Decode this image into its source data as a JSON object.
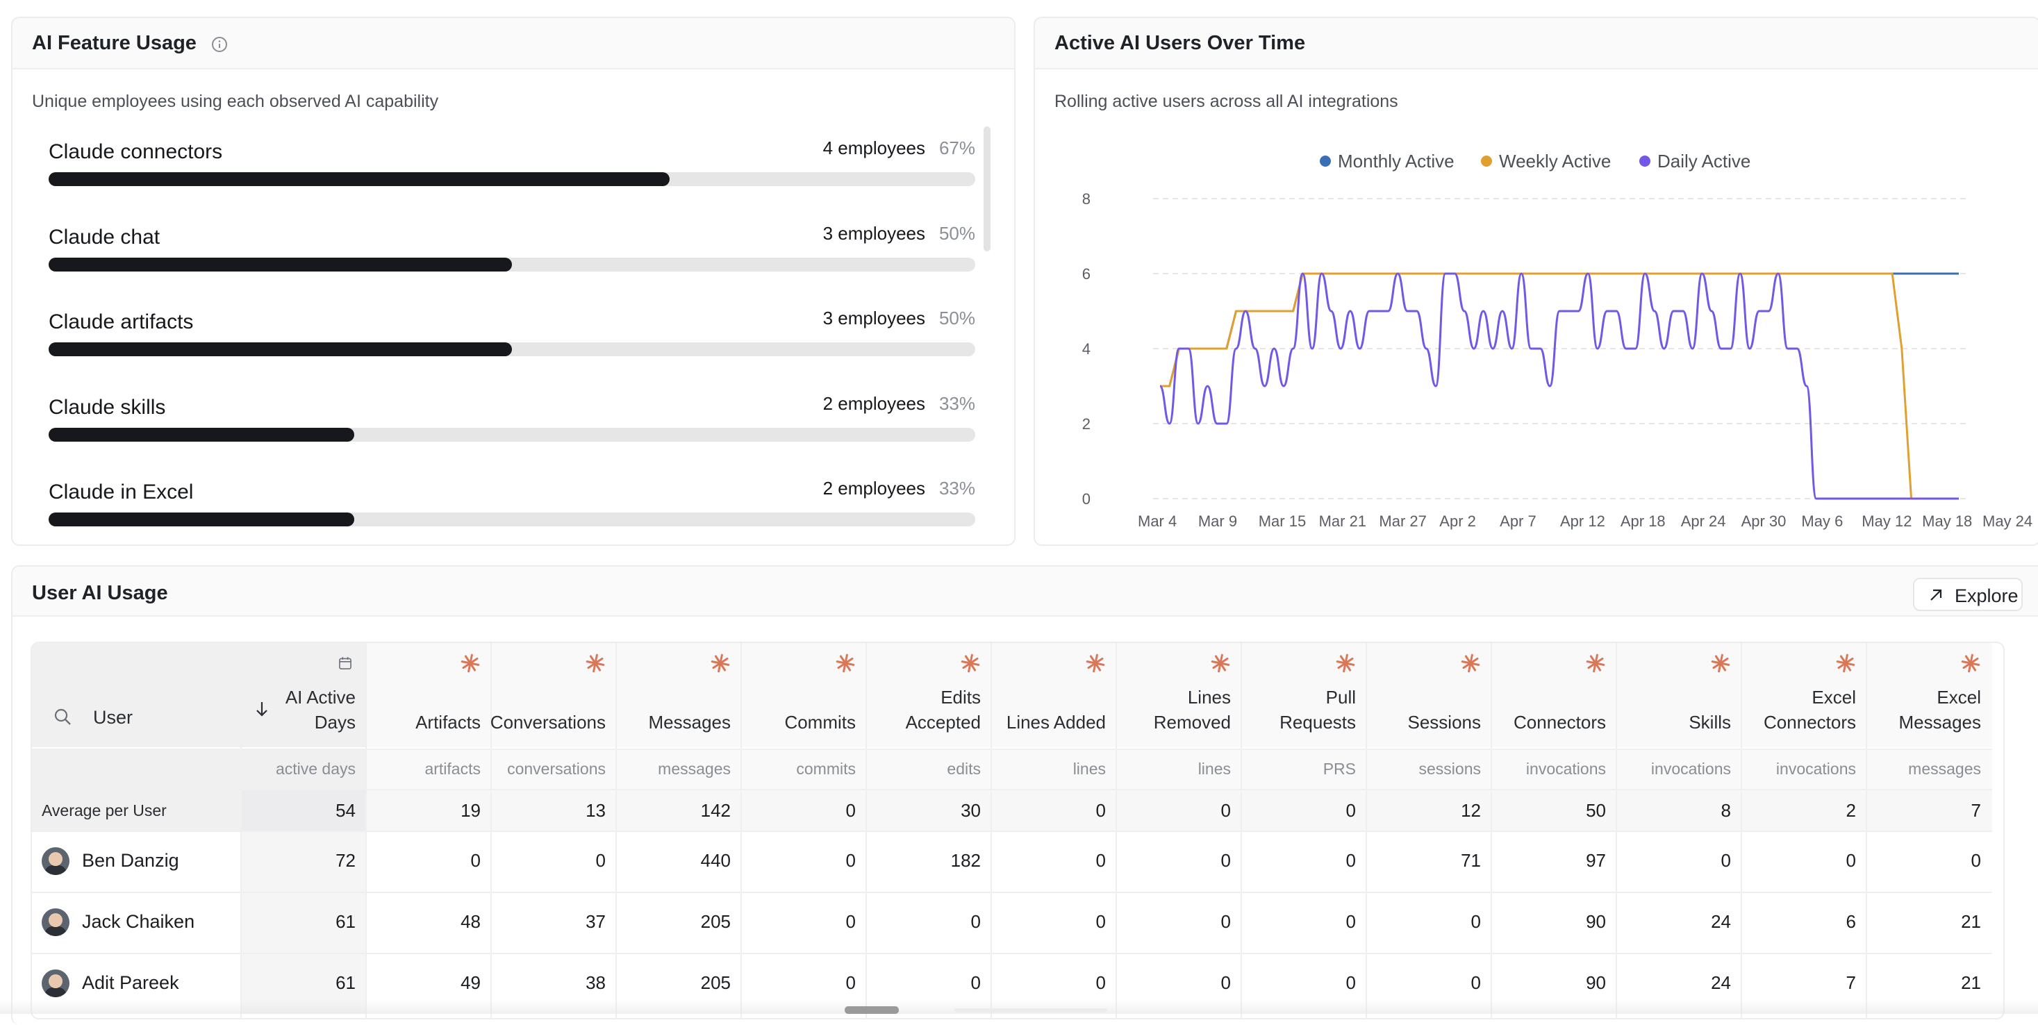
{
  "feature_card": {
    "title": "AI Feature Usage",
    "subtitle": "Unique employees using each observed AI capability",
    "items": [
      {
        "name": "Claude connectors",
        "count": "4 employees",
        "pct": "67%",
        "fraction": 0.67
      },
      {
        "name": "Claude chat",
        "count": "3 employees",
        "pct": "50%",
        "fraction": 0.5
      },
      {
        "name": "Claude artifacts",
        "count": "3 employees",
        "pct": "50%",
        "fraction": 0.5
      },
      {
        "name": "Claude skills",
        "count": "2 employees",
        "pct": "33%",
        "fraction": 0.33
      },
      {
        "name": "Claude in Excel",
        "count": "2 employees",
        "pct": "33%",
        "fraction": 0.33
      }
    ]
  },
  "trend_card": {
    "title": "Active AI Users Over Time",
    "subtitle": "Rolling active users across all AI integrations"
  },
  "chart_data": {
    "type": "line",
    "title": "Active AI Users Over Time",
    "y_ticks": [
      "0",
      "2",
      "4",
      "6",
      "8"
    ],
    "ylim": [
      0,
      8
    ],
    "grid": true,
    "legend_position": "top-center",
    "x_tick_labels": [
      "Mar 4",
      "Mar 9",
      "Mar 15",
      "Mar 21",
      "Mar 27",
      "Apr 2",
      "Apr 7",
      "Apr 12",
      "Apr 18",
      "Apr 24",
      "Apr 30",
      "May 6",
      "May 12",
      "May 18",
      "May 24"
    ],
    "series": [
      {
        "name": "Monthly Active",
        "color": "#3a6fb5",
        "points": [
          [
            0,
            3
          ],
          [
            1,
            3
          ],
          [
            2,
            4
          ],
          [
            7,
            4
          ],
          [
            8,
            5
          ],
          [
            14,
            5
          ],
          [
            15,
            6
          ],
          [
            84,
            6
          ]
        ]
      },
      {
        "name": "Weekly Active",
        "color": "#e0a030",
        "points": [
          [
            0,
            3
          ],
          [
            1,
            3
          ],
          [
            2,
            4
          ],
          [
            7,
            4
          ],
          [
            8,
            5
          ],
          [
            14,
            5
          ],
          [
            15,
            6
          ],
          [
            77,
            6
          ],
          [
            78,
            4
          ],
          [
            79,
            0
          ],
          [
            84,
            0
          ]
        ]
      },
      {
        "name": "Daily Active",
        "color": "#7357e6",
        "points": [
          [
            0,
            3
          ],
          [
            1,
            2
          ],
          [
            2,
            4
          ],
          [
            3,
            4
          ],
          [
            4,
            2
          ],
          [
            5,
            3
          ],
          [
            6,
            2
          ],
          [
            7,
            2
          ],
          [
            8,
            4
          ],
          [
            9,
            5
          ],
          [
            10,
            4
          ],
          [
            11,
            3
          ],
          [
            12,
            4
          ],
          [
            13,
            3
          ],
          [
            14,
            4
          ],
          [
            15,
            6
          ],
          [
            16,
            4
          ],
          [
            17,
            6
          ],
          [
            18,
            5
          ],
          [
            19,
            4
          ],
          [
            20,
            5
          ],
          [
            21,
            4
          ],
          [
            22,
            5
          ],
          [
            23,
            5
          ],
          [
            24,
            5
          ],
          [
            25,
            6
          ],
          [
            26,
            5
          ],
          [
            27,
            5
          ],
          [
            28,
            4
          ],
          [
            29,
            3
          ],
          [
            30,
            6
          ],
          [
            31,
            6
          ],
          [
            32,
            5
          ],
          [
            33,
            4
          ],
          [
            34,
            5
          ],
          [
            35,
            4
          ],
          [
            36,
            5
          ],
          [
            37,
            4
          ],
          [
            38,
            6
          ],
          [
            39,
            4
          ],
          [
            40,
            4
          ],
          [
            41,
            3
          ],
          [
            42,
            5
          ],
          [
            43,
            5
          ],
          [
            44,
            5
          ],
          [
            45,
            6
          ],
          [
            46,
            4
          ],
          [
            47,
            5
          ],
          [
            48,
            5
          ],
          [
            49,
            4
          ],
          [
            50,
            4
          ],
          [
            51,
            6
          ],
          [
            52,
            5
          ],
          [
            53,
            4
          ],
          [
            54,
            5
          ],
          [
            55,
            5
          ],
          [
            56,
            4
          ],
          [
            57,
            6
          ],
          [
            58,
            5
          ],
          [
            59,
            4
          ],
          [
            60,
            4
          ],
          [
            61,
            6
          ],
          [
            62,
            4
          ],
          [
            63,
            5
          ],
          [
            64,
            5
          ],
          [
            65,
            6
          ],
          [
            66,
            4
          ],
          [
            67,
            4
          ],
          [
            68,
            3
          ],
          [
            69,
            0
          ],
          [
            70,
            0
          ],
          [
            84,
            0
          ]
        ]
      }
    ]
  },
  "table": {
    "title": "User AI Usage",
    "explore_label": "Explore",
    "search_label": "User",
    "avg_label": "Average per User",
    "columns": [
      {
        "label": "AI Active Days",
        "unit": "active days",
        "icon": "calendar-icon"
      },
      {
        "label": "Artifacts",
        "unit": "artifacts",
        "icon": "claude-spark-icon"
      },
      {
        "label": "Conversations",
        "unit": "conversations",
        "icon": "claude-spark-icon"
      },
      {
        "label": "Messages",
        "unit": "messages",
        "icon": "claude-spark-icon"
      },
      {
        "label": "Commits",
        "unit": "commits",
        "icon": "claude-spark-icon"
      },
      {
        "label": "Edits Accepted",
        "unit": "edits",
        "icon": "claude-spark-icon"
      },
      {
        "label": "Lines Added",
        "unit": "lines",
        "icon": "claude-spark-icon"
      },
      {
        "label": "Lines Removed",
        "unit": "lines",
        "icon": "claude-spark-icon"
      },
      {
        "label": "Pull Requests",
        "unit": "PRS",
        "icon": "claude-spark-icon"
      },
      {
        "label": "Sessions",
        "unit": "sessions",
        "icon": "claude-spark-icon"
      },
      {
        "label": "Connectors",
        "unit": "invocations",
        "icon": "claude-spark-icon"
      },
      {
        "label": "Skills",
        "unit": "invocations",
        "icon": "claude-spark-icon"
      },
      {
        "label": "Excel Connectors",
        "unit": "invocations",
        "icon": "claude-spark-icon"
      },
      {
        "label": "Excel Messages",
        "unit": "messages",
        "icon": "claude-spark-icon"
      }
    ],
    "averages": [
      "54",
      "19",
      "13",
      "142",
      "0",
      "30",
      "0",
      "0",
      "0",
      "12",
      "50",
      "8",
      "2",
      "7"
    ],
    "rows": [
      {
        "name": "Ben Danzig",
        "values": [
          "72",
          "0",
          "0",
          "440",
          "0",
          "182",
          "0",
          "0",
          "0",
          "71",
          "97",
          "0",
          "0",
          "0"
        ]
      },
      {
        "name": "Jack Chaiken",
        "values": [
          "61",
          "48",
          "37",
          "205",
          "0",
          "0",
          "0",
          "0",
          "0",
          "0",
          "90",
          "24",
          "6",
          "21"
        ]
      },
      {
        "name": "Adit Pareek",
        "values": [
          "61",
          "49",
          "38",
          "205",
          "0",
          "0",
          "0",
          "0",
          "0",
          "0",
          "90",
          "24",
          "7",
          "21"
        ]
      }
    ]
  }
}
